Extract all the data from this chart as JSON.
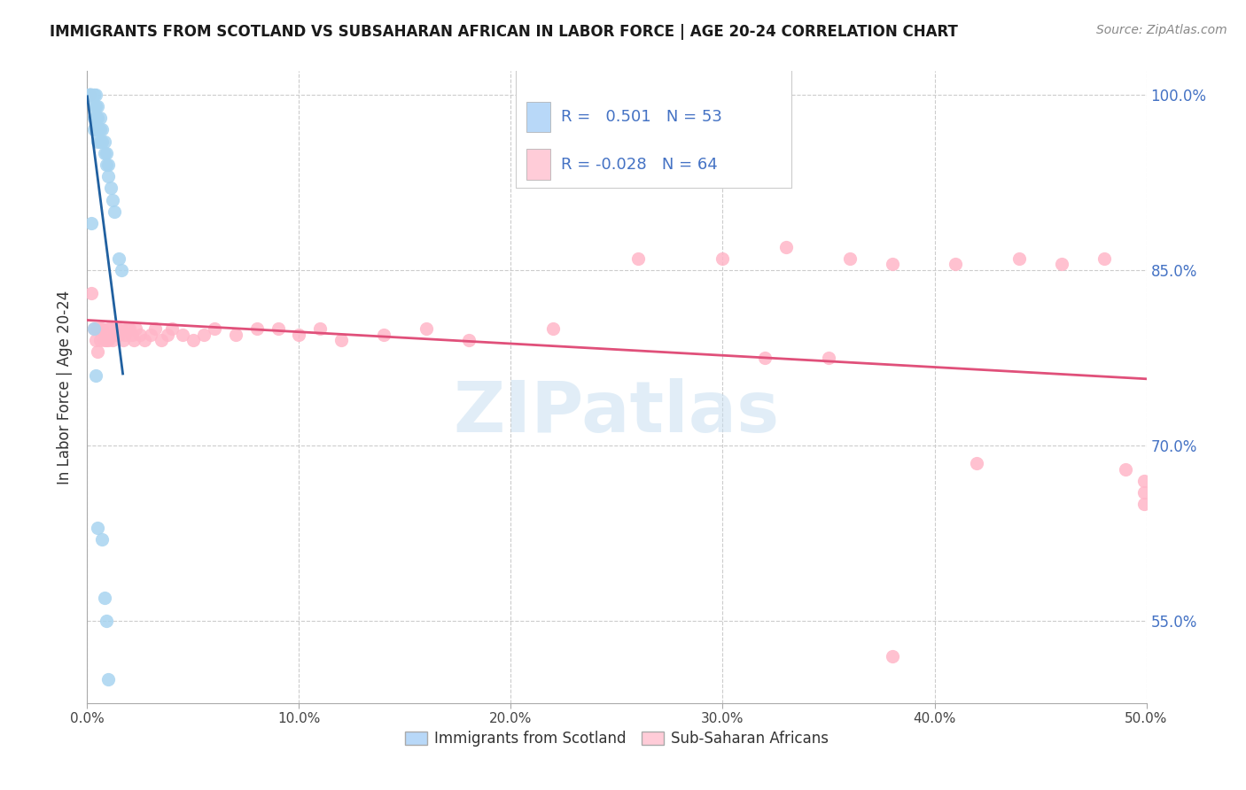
{
  "title": "IMMIGRANTS FROM SCOTLAND VS SUBSAHARAN AFRICAN IN LABOR FORCE | AGE 20-24 CORRELATION CHART",
  "source": "Source: ZipAtlas.com",
  "ylabel": "In Labor Force | Age 20-24",
  "xlim": [
    0.0,
    0.5
  ],
  "ylim": [
    0.48,
    1.02
  ],
  "scotland_R": 0.501,
  "scotland_N": 53,
  "subsaharan_R": -0.028,
  "subsaharan_N": 64,
  "scotland_color": "#a8d4f0",
  "subsaharan_color": "#ffb6c8",
  "scotland_line_color": "#2060a0",
  "subsaharan_line_color": "#e0507a",
  "legend_color_scotland": "#b8d8f8",
  "legend_color_subsaharan": "#ffccd8",
  "watermark": "ZIPatlas",
  "scotland_x": [
    0.001,
    0.001,
    0.001,
    0.001,
    0.001,
    0.001,
    0.001,
    0.001,
    0.001,
    0.001,
    0.002,
    0.002,
    0.002,
    0.002,
    0.002,
    0.002,
    0.003,
    0.003,
    0.003,
    0.003,
    0.003,
    0.004,
    0.004,
    0.004,
    0.004,
    0.005,
    0.005,
    0.005,
    0.005,
    0.006,
    0.006,
    0.006,
    0.007,
    0.007,
    0.008,
    0.008,
    0.009,
    0.009,
    0.01,
    0.01,
    0.011,
    0.012,
    0.013,
    0.015,
    0.016,
    0.002,
    0.003,
    0.004,
    0.005,
    0.007,
    0.008,
    0.009,
    0.01
  ],
  "scotland_y": [
    1.0,
    1.0,
    1.0,
    1.0,
    1.0,
    1.0,
    1.0,
    1.0,
    1.0,
    1.0,
    1.0,
    1.0,
    1.0,
    1.0,
    1.0,
    1.0,
    1.0,
    1.0,
    0.99,
    0.98,
    0.97,
    1.0,
    0.99,
    0.98,
    0.97,
    0.99,
    0.98,
    0.97,
    0.96,
    0.98,
    0.97,
    0.96,
    0.97,
    0.96,
    0.96,
    0.95,
    0.95,
    0.94,
    0.94,
    0.93,
    0.92,
    0.91,
    0.9,
    0.86,
    0.85,
    0.89,
    0.8,
    0.76,
    0.63,
    0.62,
    0.57,
    0.55,
    0.5
  ],
  "subsaharan_x": [
    0.001,
    0.002,
    0.003,
    0.004,
    0.005,
    0.005,
    0.006,
    0.006,
    0.007,
    0.008,
    0.009,
    0.01,
    0.01,
    0.011,
    0.012,
    0.013,
    0.014,
    0.015,
    0.016,
    0.017,
    0.018,
    0.019,
    0.02,
    0.021,
    0.022,
    0.023,
    0.025,
    0.027,
    0.03,
    0.032,
    0.035,
    0.038,
    0.04,
    0.045,
    0.05,
    0.055,
    0.06,
    0.07,
    0.08,
    0.09,
    0.1,
    0.11,
    0.12,
    0.14,
    0.16,
    0.18,
    0.22,
    0.26,
    0.3,
    0.33,
    0.36,
    0.38,
    0.41,
    0.44,
    0.46,
    0.48,
    0.49,
    0.499,
    0.499,
    0.499,
    0.35,
    0.42,
    0.38,
    0.32
  ],
  "subsaharan_y": [
    1.0,
    0.83,
    0.8,
    0.79,
    0.8,
    0.78,
    0.8,
    0.79,
    0.8,
    0.79,
    0.79,
    0.8,
    0.79,
    0.8,
    0.79,
    0.795,
    0.8,
    0.795,
    0.8,
    0.79,
    0.795,
    0.8,
    0.8,
    0.795,
    0.79,
    0.8,
    0.795,
    0.79,
    0.795,
    0.8,
    0.79,
    0.795,
    0.8,
    0.795,
    0.79,
    0.795,
    0.8,
    0.795,
    0.8,
    0.8,
    0.795,
    0.8,
    0.79,
    0.795,
    0.8,
    0.79,
    0.8,
    0.86,
    0.86,
    0.87,
    0.86,
    0.855,
    0.855,
    0.86,
    0.855,
    0.86,
    0.68,
    0.67,
    0.65,
    0.66,
    0.775,
    0.685,
    0.52,
    0.775
  ],
  "ytick_positions": [
    0.55,
    0.7,
    0.85,
    1.0
  ],
  "ytick_labels": [
    "55.0%",
    "70.0%",
    "85.0%",
    "100.0%"
  ],
  "xtick_positions": [
    0.0,
    0.1,
    0.2,
    0.3,
    0.4,
    0.5
  ],
  "xtick_labels": [
    "0.0%",
    "10.0%",
    "20.0%",
    "30.0%",
    "40.0%",
    "50.0%"
  ]
}
